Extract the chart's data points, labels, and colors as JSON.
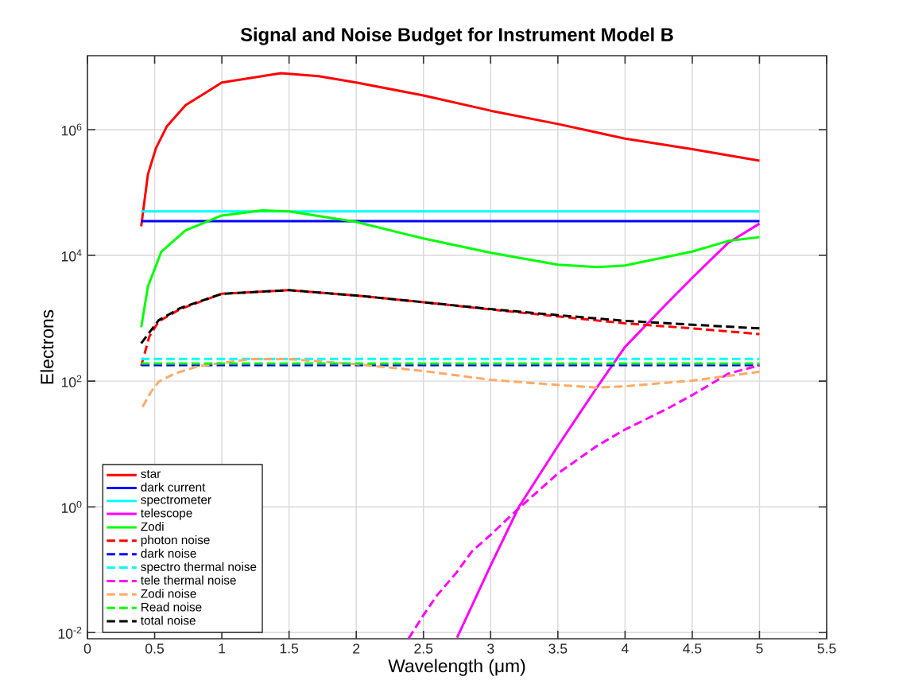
{
  "chart_data": {
    "type": "line",
    "title": "Signal and Noise Budget for Instrument Model B",
    "xlabel": "Wavelength (μm)",
    "ylabel": "Electrons",
    "log": "y",
    "grid": true,
    "legend": "bottom left",
    "xlim": [
      0,
      5.5
    ],
    "ylim": [
      0.008,
      15000000
    ],
    "xticks": [
      0,
      0.5,
      1,
      1.5,
      2,
      2.5,
      3,
      3.5,
      4,
      4.5,
      5,
      5.5
    ],
    "yticks": [
      {
        "value": 0.01,
        "label": "10$^{-2}$"
      },
      {
        "value": 1,
        "label": "10$^{0}$"
      },
      {
        "value": 100,
        "label": "10$^{2}$"
      },
      {
        "value": 10000,
        "label": "10$^{4}$"
      },
      {
        "value": 1000000,
        "label": "10$^{6}$"
      }
    ],
    "series": [
      {
        "name": "star",
        "color": "#ff0000",
        "line_style": "solid",
        "x": [
          0.4,
          0.45,
          0.51,
          0.59,
          0.73,
          1.0,
          1.44,
          1.72,
          2.0,
          2.5,
          3.0,
          3.5,
          4.0,
          4.5,
          5.0
        ],
        "values": [
          29000,
          195000,
          510000,
          1120000,
          2450000,
          5600000,
          7900000,
          7100000,
          5600000,
          3500000,
          2000000,
          1230000,
          720000,
          490000,
          320000
        ]
      },
      {
        "name": "dark current",
        "color": "#0000ff",
        "line_style": "solid",
        "x": [
          0.4,
          5
        ],
        "values": [
          35000,
          35000
        ]
      },
      {
        "name": "spectrometer",
        "color": "#00ffff",
        "line_style": "solid",
        "x": [
          0.4,
          5
        ],
        "values": [
          50000,
          50000
        ]
      },
      {
        "name": "telescope",
        "color": "#ff00ff",
        "line_style": "solid",
        "x": [
          2.75,
          3.0,
          3.21,
          3.5,
          3.79,
          4.0,
          4.32,
          4.5,
          4.77,
          5.0
        ],
        "values": [
          0.0083,
          0.117,
          1.0,
          9.3,
          79,
          350,
          1800,
          4400,
          16000,
          32000
        ]
      },
      {
        "name": "Zodi",
        "color": "#00ff00",
        "line_style": "solid",
        "x": [
          0.4,
          0.45,
          0.55,
          0.73,
          1.0,
          1.3,
          1.5,
          2.0,
          2.5,
          3.0,
          3.5,
          3.79,
          4.0,
          4.5,
          4.77,
          5.0
        ],
        "values": [
          720,
          3200,
          11500,
          25000,
          43000,
          52000,
          50000,
          34000,
          18600,
          11000,
          7100,
          6500,
          6900,
          11500,
          17000,
          19500
        ]
      },
      {
        "name": "photon noise",
        "color": "#ff0000",
        "line_style": "dashed",
        "x": [
          0.4,
          0.46,
          0.53,
          0.69,
          1.0,
          1.5,
          2.0,
          2.5,
          3.0,
          3.5,
          4.0,
          4.5,
          5.0
        ],
        "values": [
          175,
          510,
          890,
          1400,
          2450,
          2800,
          2300,
          1800,
          1380,
          1070,
          830,
          690,
          560
        ]
      },
      {
        "name": "dark noise",
        "color": "#0000ff",
        "line_style": "dashed",
        "x": [
          0.4,
          5
        ],
        "values": [
          180,
          180
        ]
      },
      {
        "name": "spectro thermal noise",
        "color": "#00ffff",
        "line_style": "dashed",
        "x": [
          0.4,
          5
        ],
        "values": [
          225,
          225
        ]
      },
      {
        "name": "tele thermal noise",
        "color": "#ff00ff",
        "line_style": "dashed",
        "x": [
          2.39,
          2.5,
          2.6,
          2.74,
          2.86,
          3.0,
          3.2,
          3.5,
          3.79,
          4.0,
          4.32,
          4.5,
          4.77,
          5.0
        ],
        "values": [
          0.0081,
          0.019,
          0.039,
          0.087,
          0.195,
          0.36,
          0.91,
          3.4,
          9.3,
          17,
          37,
          60,
          132,
          178
        ]
      },
      {
        "name": "Zodi noise",
        "color": "#ffaa66",
        "line_style": "dashed",
        "x": [
          0.41,
          0.47,
          0.53,
          0.65,
          0.83,
          1.22,
          1.5,
          2.0,
          2.5,
          3.0,
          3.5,
          3.79,
          4.0,
          4.5,
          5.0
        ],
        "values": [
          39,
          66,
          98,
          132,
          174,
          224,
          224,
          186,
          145,
          105,
          87,
          79,
          83,
          102,
          141
        ]
      },
      {
        "name": "Read noise",
        "color": "#00ff00",
        "line_style": "dashed",
        "x": [
          0.4,
          5
        ],
        "values": [
          190,
          190
        ]
      },
      {
        "name": "total noise",
        "color": "#000000",
        "line_style": "dashed",
        "x": [
          0.4,
          0.53,
          0.69,
          1.0,
          1.5,
          2.0,
          2.5,
          3.0,
          3.5,
          4.0,
          4.5,
          5.0
        ],
        "values": [
          400,
          930,
          1450,
          2450,
          2800,
          2300,
          1800,
          1400,
          1120,
          910,
          790,
          690
        ]
      }
    ]
  }
}
